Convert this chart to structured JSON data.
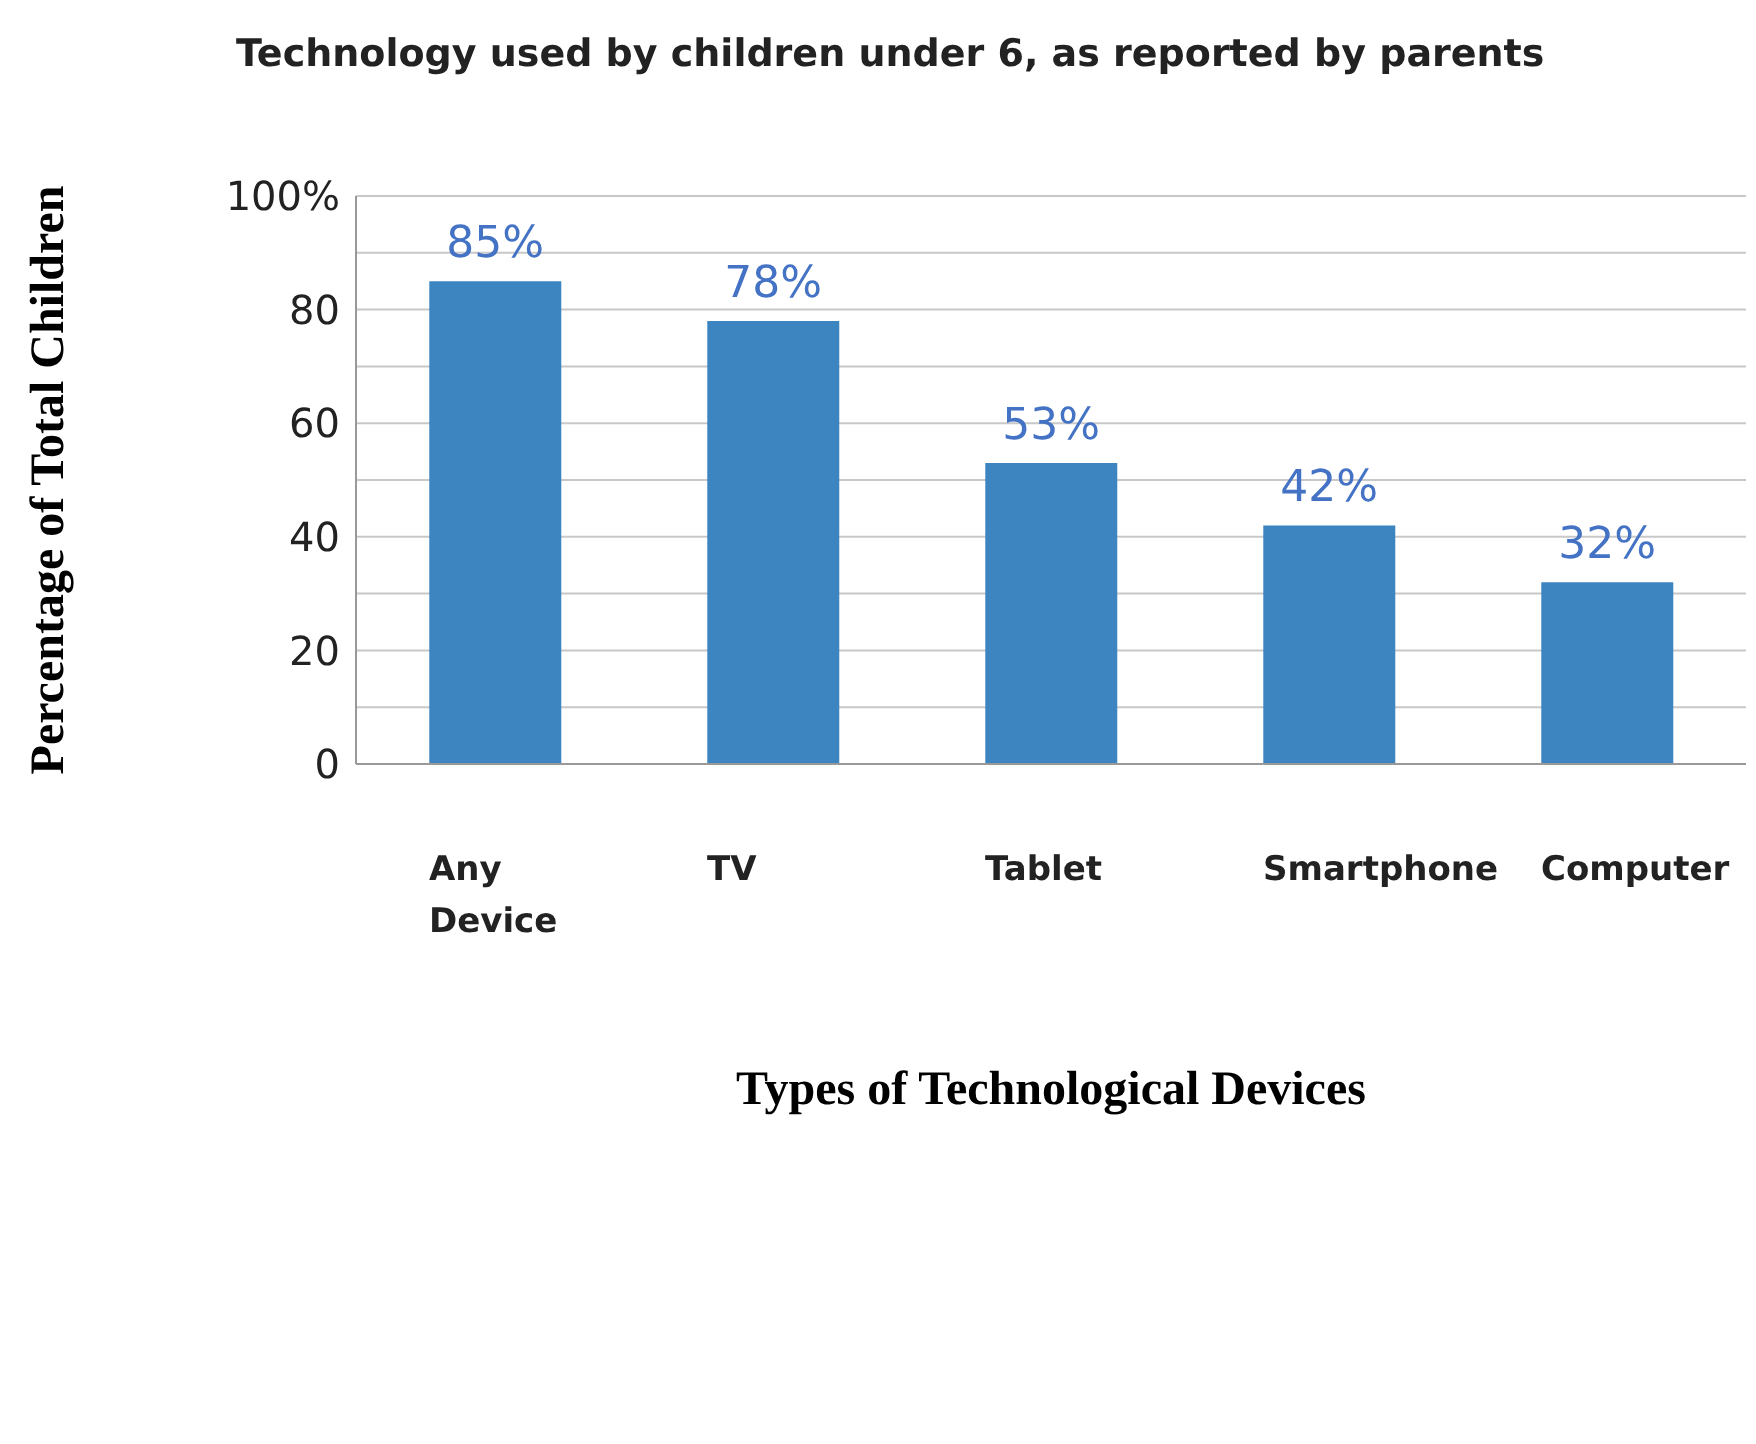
{
  "chart_data": {
    "type": "bar",
    "title": "Technology used by children under 6, as reported by parents",
    "xlabel": "Types of Technological Devices",
    "ylabel": "Percentage of Total Children",
    "categories": [
      "Any Device",
      "TV",
      "Tablet",
      "Smartphone",
      "Computer"
    ],
    "values": [
      85,
      78,
      53,
      42,
      32
    ],
    "color": "#3d85c0",
    "value_labels": [
      "85%",
      "78%",
      "53%",
      "42%",
      "32%"
    ],
    "ylim": [
      0,
      100
    ],
    "yticks": [
      0,
      {
        "value": 10,
        "label": null
      },
      20,
      {
        "value": 30,
        "label": null
      },
      40,
      {
        "value": 50,
        "label": null
      },
      60,
      {
        "value": 70,
        "label": null
      },
      80,
      {
        "value": 90,
        "label": null
      },
      {
        "value": 100,
        "label": "100%"
      }
    ],
    "grid": "y"
  }
}
